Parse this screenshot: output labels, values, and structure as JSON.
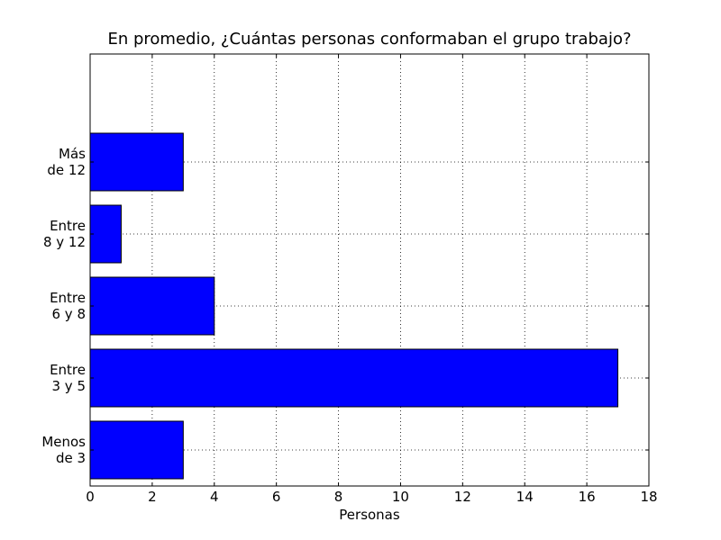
{
  "chart_data": {
    "type": "bar",
    "orientation": "horizontal",
    "title": "En promedio, ¿Cuántas personas conformaban el grupo trabajo?",
    "xlabel": "Personas",
    "ylabel": "",
    "categories": [
      [
        "Menos",
        "de 3"
      ],
      [
        "Entre",
        "3 y 5"
      ],
      [
        "Entre",
        "6 y 8"
      ],
      [
        "Entre",
        "8 y 12"
      ],
      [
        "Más",
        "de 12"
      ]
    ],
    "values": [
      3,
      17,
      4,
      1,
      3
    ],
    "xlim": [
      0,
      18
    ],
    "xticks": [
      0,
      2,
      4,
      6,
      8,
      10,
      12,
      14,
      16,
      18
    ],
    "ylim": [
      -0.5,
      5.5
    ],
    "grid": true,
    "bar_color": "#0000ff",
    "edge_color": "#000000"
  }
}
